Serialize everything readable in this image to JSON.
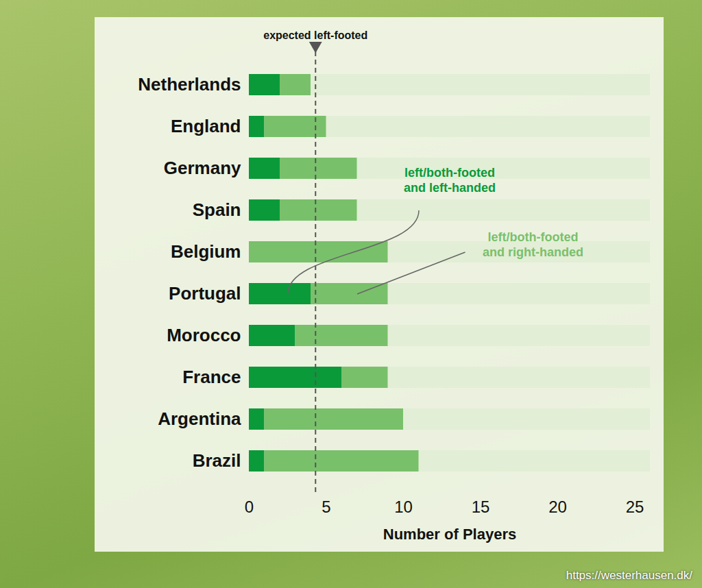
{
  "chart_data": {
    "type": "bar",
    "orientation": "horizontal",
    "stacked": true,
    "grid": false,
    "data_labels": false,
    "categories": [
      "Netherlands",
      "England",
      "Germany",
      "Spain",
      "Belgium",
      "Portugal",
      "Morocco",
      "France",
      "Argentina",
      "Brazil"
    ],
    "series": [
      {
        "name": "left/both-footed and left-handed",
        "color": "#0a9a3a",
        "values": [
          2,
          1,
          2,
          2,
          0,
          4,
          3,
          6,
          1,
          1
        ]
      },
      {
        "name": "left/both-footed and right-handed",
        "color": "#79c06b",
        "values": [
          2,
          4,
          5,
          5,
          9,
          5,
          6,
          3,
          9,
          10
        ]
      }
    ],
    "xlabel": "Number of Players",
    "xlim": [
      0,
      26
    ],
    "xticks": [
      0,
      5,
      10,
      15,
      20,
      25
    ],
    "reference_line": {
      "value": 4.3,
      "label": "expected left-footed"
    },
    "caption": "https://westerhausen.dk/"
  }
}
